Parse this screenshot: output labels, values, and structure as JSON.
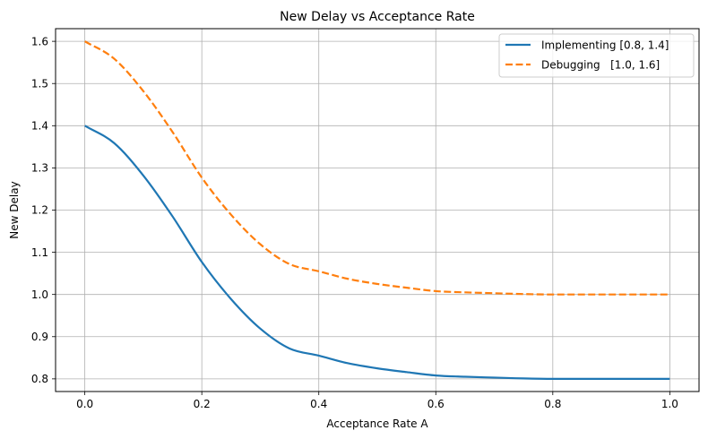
{
  "chart_data": {
    "type": "line",
    "title": "New Delay vs Acceptance Rate",
    "xlabel": "Acceptance Rate A",
    "ylabel": "New Delay",
    "xlim": [
      -0.05,
      1.05
    ],
    "ylim": [
      0.77,
      1.63
    ],
    "xticks": [
      0.0,
      0.2,
      0.4,
      0.6,
      0.8,
      1.0
    ],
    "xtick_labels": [
      "0.0",
      "0.2",
      "0.4",
      "0.6",
      "0.8",
      "1.0"
    ],
    "yticks": [
      0.8,
      0.9,
      1.0,
      1.1,
      1.2,
      1.3,
      1.4,
      1.5,
      1.6
    ],
    "ytick_labels": [
      "0.8",
      "0.9",
      "1.0",
      "1.1",
      "1.2",
      "1.3",
      "1.4",
      "1.5",
      "1.6"
    ],
    "grid": true,
    "legend_position": "top-right",
    "x": [
      0.0,
      0.05,
      0.1,
      0.15,
      0.2,
      0.25,
      0.3,
      0.35,
      0.4,
      0.45,
      0.5,
      0.55,
      0.6,
      0.65,
      0.7,
      0.75,
      0.8,
      0.85,
      0.9,
      0.95,
      1.0
    ],
    "series": [
      {
        "name": "Implementing [0.8, 1.4]",
        "color": "#1f77b4",
        "style": "solid",
        "values": [
          1.4,
          1.359,
          1.282,
          1.185,
          1.077,
          0.989,
          0.919,
          0.872,
          0.855,
          0.837,
          0.825,
          0.816,
          0.808,
          0.805,
          0.803,
          0.801,
          0.8,
          0.8,
          0.8,
          0.8,
          0.8
        ]
      },
      {
        "name": "Debugging   [1.0, 1.6]",
        "color": "#ff7f0e",
        "style": "dashed",
        "values": [
          1.6,
          1.559,
          1.482,
          1.385,
          1.277,
          1.189,
          1.119,
          1.072,
          1.055,
          1.037,
          1.025,
          1.016,
          1.008,
          1.005,
          1.003,
          1.001,
          1.0,
          1.0,
          1.0,
          1.0,
          1.0
        ]
      }
    ]
  }
}
